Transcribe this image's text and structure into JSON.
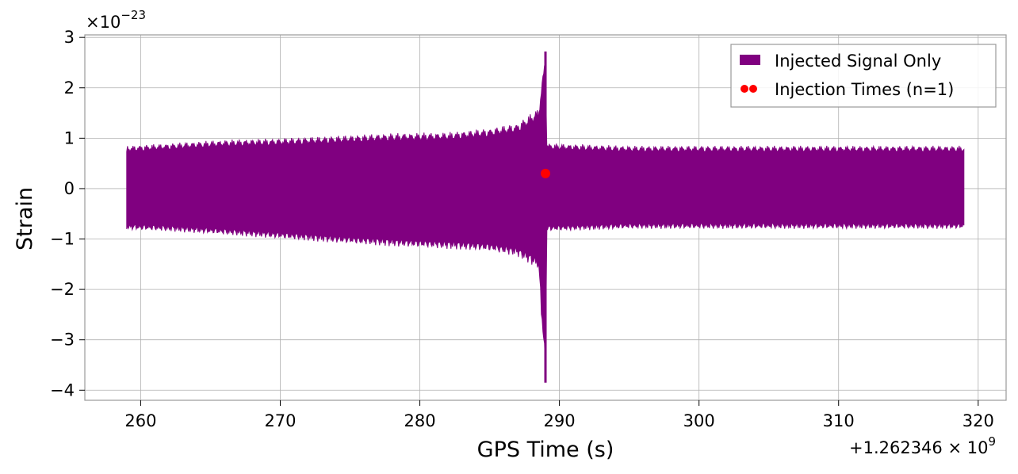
{
  "chart_data": {
    "type": "line",
    "xlabel": "GPS Time (s)",
    "ylabel": "Strain",
    "y_multiplier": "×10",
    "y_multiplier_exp": "−23",
    "x_offset_label": "+1.262346 × 10",
    "x_offset_exp": "9",
    "xlim": [
      256,
      322
    ],
    "ylim": [
      -4.2,
      3.05
    ],
    "xticks": [
      260,
      270,
      280,
      290,
      300,
      310,
      320
    ],
    "xtick_labels": [
      "260",
      "270",
      "280",
      "290",
      "300",
      "310",
      "320"
    ],
    "yticks": [
      3,
      2,
      1,
      0,
      -1,
      -2,
      -3,
      -4
    ],
    "ytick_labels": [
      "3",
      "2",
      "1",
      "0",
      "−1",
      "−2",
      "−3",
      "−4"
    ],
    "grid": true,
    "legend_position": "top-right",
    "series": [
      {
        "name": "Injected Signal Only",
        "color": "#800080",
        "kind": "envelope",
        "x_start": 259,
        "x_end": 319,
        "envelope": [
          {
            "x": 259,
            "upper": 0.85,
            "lower": -0.82
          },
          {
            "x": 262,
            "upper": 0.9,
            "lower": -0.85
          },
          {
            "x": 266,
            "upper": 0.97,
            "lower": -0.92
          },
          {
            "x": 270,
            "upper": 1.0,
            "lower": -1.0
          },
          {
            "x": 274,
            "upper": 1.05,
            "lower": -1.08
          },
          {
            "x": 278,
            "upper": 1.1,
            "lower": -1.15
          },
          {
            "x": 282,
            "upper": 1.12,
            "lower": -1.2
          },
          {
            "x": 285,
            "upper": 1.2,
            "lower": -1.25
          },
          {
            "x": 287,
            "upper": 1.3,
            "lower": -1.35
          },
          {
            "x": 288.5,
            "upper": 1.6,
            "lower": -1.6
          },
          {
            "x": 289.0,
            "upper": 2.72,
            "lower": -3.85
          },
          {
            "x": 289.1,
            "upper": 0.9,
            "lower": -0.85
          },
          {
            "x": 295,
            "upper": 0.85,
            "lower": -0.8
          },
          {
            "x": 305,
            "upper": 0.85,
            "lower": -0.8
          },
          {
            "x": 319,
            "upper": 0.85,
            "lower": -0.8
          }
        ]
      },
      {
        "name": "Injection Times (n=1)",
        "color": "#ff0000",
        "kind": "scatter",
        "points": [
          {
            "x": 289.0,
            "y": 0.3
          }
        ]
      }
    ]
  }
}
